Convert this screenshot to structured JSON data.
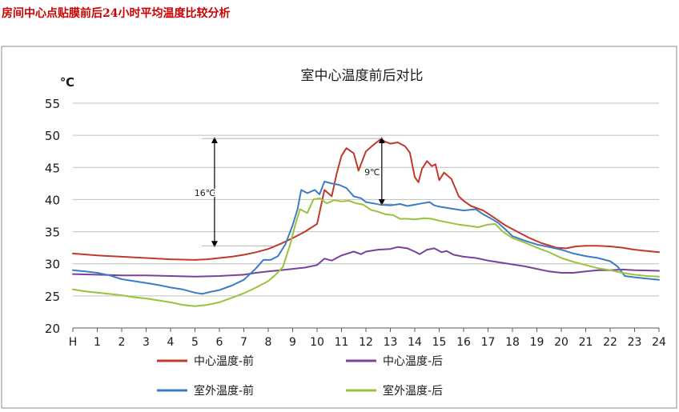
{
  "page": {
    "heading": "房间中心点贴膜前后24小时平均温度比较分析"
  },
  "colors": {
    "center_before": "#c0392b",
    "center_after": "#7b3fa0",
    "outdoor_before": "#3c7cc4",
    "outdoor_after": "#9bc23c",
    "grid": "#bfbfbf",
    "annotation": "#000000"
  },
  "chart_data": {
    "type": "line",
    "title": "室中心温度前后对比",
    "ylabel": "℃",
    "xlabel": "",
    "ylim": [
      20,
      55
    ],
    "xlim": [
      0,
      24
    ],
    "yticks": [
      20,
      25,
      30,
      35,
      40,
      45,
      50,
      55
    ],
    "xticks": [
      "H",
      "1",
      "2",
      "3",
      "4",
      "5",
      "6",
      "7",
      "8",
      "9",
      "10",
      "11",
      "12",
      "13",
      "14",
      "15",
      "16",
      "17",
      "18",
      "19",
      "20",
      "21",
      "22",
      "23",
      "24"
    ],
    "grid": "horizontal",
    "legend_position": "bottom",
    "series": [
      {
        "name": "中心温度-前",
        "color_key": "center_before",
        "points": [
          [
            0,
            31.6
          ],
          [
            1,
            31.3
          ],
          [
            2,
            31.1
          ],
          [
            3,
            30.9
          ],
          [
            4,
            30.7
          ],
          [
            5,
            30.6
          ],
          [
            5.5,
            30.7
          ],
          [
            6,
            30.9
          ],
          [
            6.5,
            31.1
          ],
          [
            7,
            31.4
          ],
          [
            7.5,
            31.8
          ],
          [
            8,
            32.3
          ],
          [
            8.5,
            33.1
          ],
          [
            9,
            34.0
          ],
          [
            9.5,
            35.0
          ],
          [
            10,
            36.2
          ],
          [
            10.3,
            41.5
          ],
          [
            10.6,
            40.5
          ],
          [
            10.8,
            44.0
          ],
          [
            11,
            46.8
          ],
          [
            11.2,
            48.0
          ],
          [
            11.5,
            47.2
          ],
          [
            11.7,
            44.5
          ],
          [
            12,
            47.5
          ],
          [
            12.3,
            48.5
          ],
          [
            12.6,
            49.4
          ],
          [
            12.8,
            49.0
          ],
          [
            13,
            48.7
          ],
          [
            13.3,
            48.9
          ],
          [
            13.6,
            48.3
          ],
          [
            13.8,
            47.3
          ],
          [
            14,
            43.5
          ],
          [
            14.15,
            42.7
          ],
          [
            14.3,
            44.8
          ],
          [
            14.5,
            46.0
          ],
          [
            14.7,
            45.2
          ],
          [
            14.85,
            45.5
          ],
          [
            15,
            43.0
          ],
          [
            15.2,
            44.2
          ],
          [
            15.5,
            43.2
          ],
          [
            15.8,
            40.5
          ],
          [
            16,
            39.8
          ],
          [
            16.3,
            39.0
          ],
          [
            16.8,
            38.3
          ],
          [
            17.2,
            37.3
          ],
          [
            17.7,
            36.0
          ],
          [
            18.2,
            35.0
          ],
          [
            18.7,
            34.0
          ],
          [
            19.2,
            33.2
          ],
          [
            19.8,
            32.5
          ],
          [
            20.2,
            32.4
          ],
          [
            20.6,
            32.7
          ],
          [
            21,
            32.8
          ],
          [
            21.5,
            32.8
          ],
          [
            22,
            32.7
          ],
          [
            22.5,
            32.5
          ],
          [
            23,
            32.2
          ],
          [
            23.5,
            32.0
          ],
          [
            24,
            31.8
          ]
        ]
      },
      {
        "name": "中心温度-后",
        "color_key": "center_after",
        "points": [
          [
            0,
            28.4
          ],
          [
            1,
            28.3
          ],
          [
            2,
            28.2
          ],
          [
            3,
            28.2
          ],
          [
            4,
            28.1
          ],
          [
            5,
            28.0
          ],
          [
            6,
            28.1
          ],
          [
            7,
            28.3
          ],
          [
            7.5,
            28.6
          ],
          [
            8,
            28.8
          ],
          [
            8.5,
            29.0
          ],
          [
            9,
            29.2
          ],
          [
            9.5,
            29.4
          ],
          [
            10,
            29.8
          ],
          [
            10.3,
            30.8
          ],
          [
            10.6,
            30.5
          ],
          [
            11,
            31.3
          ],
          [
            11.5,
            31.9
          ],
          [
            11.8,
            31.5
          ],
          [
            12,
            31.9
          ],
          [
            12.5,
            32.2
          ],
          [
            13,
            32.3
          ],
          [
            13.3,
            32.6
          ],
          [
            13.7,
            32.4
          ],
          [
            14,
            31.9
          ],
          [
            14.2,
            31.5
          ],
          [
            14.5,
            32.2
          ],
          [
            14.8,
            32.4
          ],
          [
            15.1,
            31.8
          ],
          [
            15.3,
            32.0
          ],
          [
            15.6,
            31.4
          ],
          [
            16,
            31.1
          ],
          [
            16.5,
            30.9
          ],
          [
            17,
            30.5
          ],
          [
            17.5,
            30.2
          ],
          [
            18,
            29.9
          ],
          [
            18.5,
            29.6
          ],
          [
            19,
            29.2
          ],
          [
            19.5,
            28.8
          ],
          [
            20,
            28.6
          ],
          [
            20.5,
            28.6
          ],
          [
            21,
            28.8
          ],
          [
            21.5,
            29.0
          ],
          [
            22,
            29.0
          ],
          [
            22.5,
            29.1
          ],
          [
            23,
            29.0
          ],
          [
            24,
            28.9
          ]
        ]
      },
      {
        "name": "室外温度-前",
        "color_key": "outdoor_before",
        "points": [
          [
            0,
            29.0
          ],
          [
            0.5,
            28.8
          ],
          [
            1,
            28.6
          ],
          [
            1.5,
            28.2
          ],
          [
            2,
            27.6
          ],
          [
            2.5,
            27.3
          ],
          [
            3,
            27.0
          ],
          [
            3.5,
            26.7
          ],
          [
            4,
            26.3
          ],
          [
            4.5,
            26.0
          ],
          [
            5,
            25.5
          ],
          [
            5.3,
            25.3
          ],
          [
            5.6,
            25.6
          ],
          [
            6,
            25.9
          ],
          [
            6.5,
            26.6
          ],
          [
            7,
            27.5
          ],
          [
            7.5,
            29.3
          ],
          [
            7.8,
            30.6
          ],
          [
            8.1,
            30.6
          ],
          [
            8.4,
            31.2
          ],
          [
            8.7,
            33.0
          ],
          [
            9,
            36.0
          ],
          [
            9.2,
            38.5
          ],
          [
            9.35,
            41.5
          ],
          [
            9.6,
            41.0
          ],
          [
            9.9,
            41.5
          ],
          [
            10.1,
            40.8
          ],
          [
            10.3,
            42.8
          ],
          [
            10.6,
            42.5
          ],
          [
            10.9,
            42.3
          ],
          [
            11.2,
            41.8
          ],
          [
            11.5,
            40.5
          ],
          [
            11.8,
            40.2
          ],
          [
            12,
            39.6
          ],
          [
            12.3,
            39.4
          ],
          [
            12.6,
            39.2
          ],
          [
            13,
            39.1
          ],
          [
            13.4,
            39.3
          ],
          [
            13.7,
            39.0
          ],
          [
            14,
            39.2
          ],
          [
            14.3,
            39.4
          ],
          [
            14.6,
            39.6
          ],
          [
            14.8,
            39.1
          ],
          [
            15,
            38.9
          ],
          [
            15.5,
            38.6
          ],
          [
            16,
            38.3
          ],
          [
            16.5,
            38.5
          ],
          [
            16.8,
            37.7
          ],
          [
            17.1,
            37.1
          ],
          [
            17.4,
            36.4
          ],
          [
            17.7,
            35.4
          ],
          [
            18,
            34.3
          ],
          [
            18.5,
            33.6
          ],
          [
            19,
            33.0
          ],
          [
            19.5,
            32.6
          ],
          [
            20,
            32.2
          ],
          [
            20.5,
            31.6
          ],
          [
            21,
            31.2
          ],
          [
            21.5,
            30.9
          ],
          [
            22,
            30.4
          ],
          [
            22.3,
            29.6
          ],
          [
            22.6,
            28.1
          ],
          [
            23,
            27.9
          ],
          [
            23.5,
            27.7
          ],
          [
            24,
            27.5
          ]
        ]
      },
      {
        "name": "室外温度-后",
        "color_key": "outdoor_after",
        "points": [
          [
            0,
            26.0
          ],
          [
            0.5,
            25.7
          ],
          [
            1,
            25.5
          ],
          [
            1.5,
            25.3
          ],
          [
            2,
            25.1
          ],
          [
            2.5,
            24.8
          ],
          [
            3,
            24.6
          ],
          [
            3.5,
            24.3
          ],
          [
            4,
            24.0
          ],
          [
            4.5,
            23.6
          ],
          [
            5,
            23.4
          ],
          [
            5.5,
            23.6
          ],
          [
            6,
            24.0
          ],
          [
            6.5,
            24.7
          ],
          [
            7,
            25.4
          ],
          [
            7.5,
            26.3
          ],
          [
            8,
            27.3
          ],
          [
            8.3,
            28.3
          ],
          [
            8.6,
            29.5
          ],
          [
            8.9,
            33.0
          ],
          [
            9.1,
            36.0
          ],
          [
            9.3,
            38.5
          ],
          [
            9.6,
            37.9
          ],
          [
            9.85,
            40.0
          ],
          [
            10.1,
            40.2
          ],
          [
            10.4,
            39.4
          ],
          [
            10.7,
            39.9
          ],
          [
            11,
            39.7
          ],
          [
            11.3,
            39.8
          ],
          [
            11.6,
            39.4
          ],
          [
            11.9,
            39.2
          ],
          [
            12.2,
            38.4
          ],
          [
            12.5,
            38.1
          ],
          [
            12.8,
            37.7
          ],
          [
            13.1,
            37.6
          ],
          [
            13.4,
            37.0
          ],
          [
            13.7,
            37.0
          ],
          [
            14,
            36.9
          ],
          [
            14.4,
            37.1
          ],
          [
            14.7,
            37.0
          ],
          [
            15,
            36.7
          ],
          [
            15.4,
            36.4
          ],
          [
            15.8,
            36.1
          ],
          [
            16.2,
            35.9
          ],
          [
            16.6,
            35.7
          ],
          [
            17,
            36.1
          ],
          [
            17.3,
            36.2
          ],
          [
            17.6,
            35.0
          ],
          [
            18,
            34.0
          ],
          [
            18.5,
            33.3
          ],
          [
            19,
            32.5
          ],
          [
            19.5,
            31.8
          ],
          [
            20,
            30.9
          ],
          [
            20.5,
            30.3
          ],
          [
            21,
            29.8
          ],
          [
            21.5,
            29.3
          ],
          [
            22,
            29.0
          ],
          [
            22.5,
            28.6
          ],
          [
            23,
            28.3
          ],
          [
            23.5,
            28.1
          ],
          [
            24,
            28.0
          ]
        ]
      }
    ],
    "annotations": [
      {
        "label": "16℃",
        "x": 5.8,
        "y_from": 32.8,
        "y_to": 49.5
      },
      {
        "label": "9℃",
        "x": 12.65,
        "y_from": 39.3,
        "y_to": 49.5
      }
    ]
  }
}
